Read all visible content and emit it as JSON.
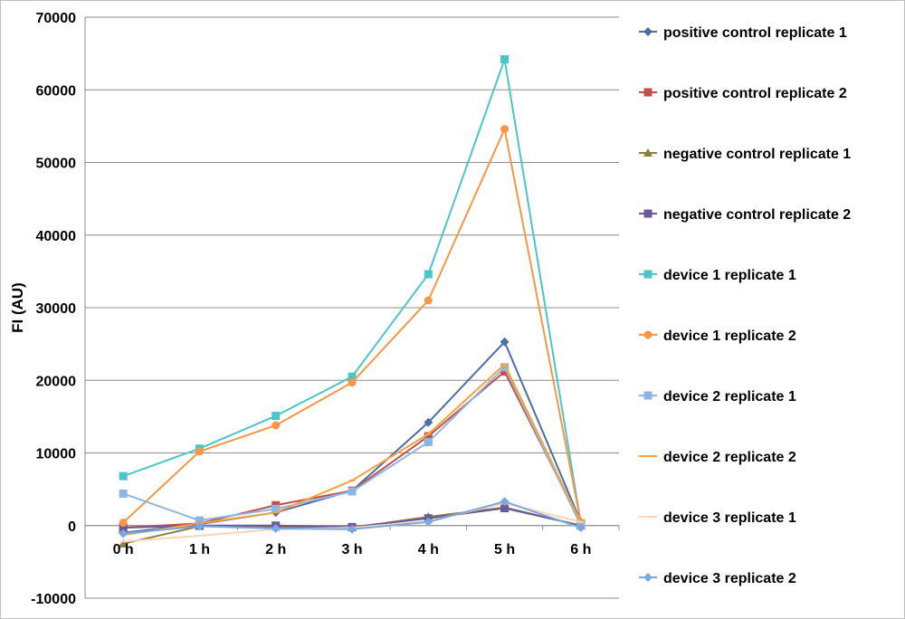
{
  "chart_data": {
    "type": "line",
    "title": "",
    "xlabel": "",
    "ylabel": "FI (AU)",
    "ylim": [
      -10000,
      70000
    ],
    "ytick_step": 10000,
    "grid": "horizontal",
    "legend_position": "right",
    "categories": [
      "0 h",
      "1 h",
      "2 h",
      "3 h",
      "4 h",
      "5 h",
      "6 h"
    ],
    "series": [
      {
        "name": "positive control replicate 1",
        "color": "#4a6fa5",
        "marker": "diamond",
        "values": [
          -1000,
          200,
          1800,
          4800,
          14200,
          25300,
          500
        ]
      },
      {
        "name": "positive control replicate 2",
        "color": "#c0504d",
        "marker": "square",
        "values": [
          -300,
          300,
          2800,
          4800,
          12300,
          21200,
          300
        ]
      },
      {
        "name": "negative control replicate 1",
        "color": "#8b7d3a",
        "marker": "triangle",
        "values": [
          -2500,
          -100,
          -200,
          -300,
          1200,
          2500,
          0
        ]
      },
      {
        "name": "negative control replicate 2",
        "color": "#6a5a9b",
        "marker": "square",
        "values": [
          -300,
          0,
          0,
          -200,
          1000,
          2400,
          0
        ]
      },
      {
        "name": "device 1 replicate 1",
        "color": "#4bc5c8",
        "marker": "square",
        "values": [
          6800,
          10600,
          15100,
          20500,
          34600,
          64200,
          300
        ]
      },
      {
        "name": "device 1 replicate 2",
        "color": "#f79646",
        "marker": "circle",
        "values": [
          400,
          10200,
          13800,
          19700,
          31000,
          54600,
          400
        ]
      },
      {
        "name": "device 2 replicate 1",
        "color": "#8eb4e3",
        "marker": "square",
        "values": [
          4400,
          700,
          2300,
          4700,
          11500,
          21800,
          0
        ]
      },
      {
        "name": "device 2 replicate 2",
        "color": "#f9a23c",
        "marker": "dash",
        "values": [
          -1300,
          300,
          1800,
          6200,
          12600,
          22200,
          400
        ]
      },
      {
        "name": "device 3 replicate 1",
        "color": "#fbd5b5",
        "marker": "dash",
        "values": [
          -2200,
          -1400,
          -500,
          -300,
          600,
          3100,
          500
        ]
      },
      {
        "name": "device 3 replicate 2",
        "color": "#7da7e0",
        "marker": "diamond",
        "values": [
          -1100,
          -100,
          -400,
          -500,
          500,
          3300,
          -300
        ]
      }
    ]
  }
}
